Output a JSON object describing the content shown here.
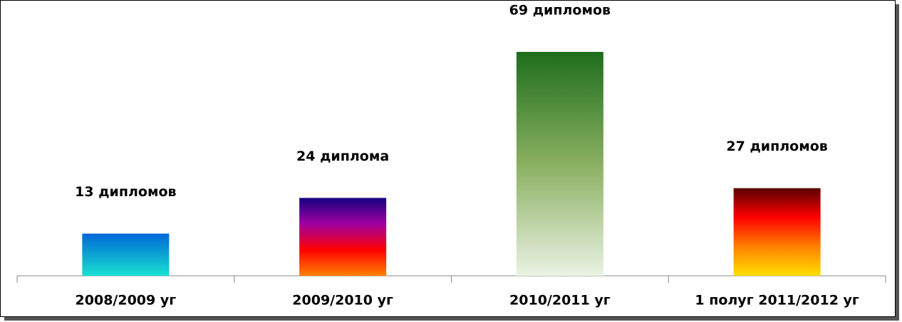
{
  "chart_data": {
    "type": "bar",
    "categories": [
      "2008/2009 уг",
      "2009/2010 уг",
      "2010/2011 уг",
      "1 полуг 2011/2012 уг"
    ],
    "values": [
      13,
      24,
      69,
      27
    ],
    "value_labels": [
      "13 дипломов",
      "24 диплома",
      "69 дипломов",
      "27 дипломов"
    ],
    "colors": [
      [
        "#0068d8",
        "#18e0d0"
      ],
      [
        "#140080",
        "#a000a0",
        "#ff0000",
        "#ff8000"
      ],
      [
        "#1c6e1c",
        "#8ab060",
        "#eaf2e4"
      ],
      [
        "#5a0000",
        "#ff0000",
        "#ff8000",
        "#ffe000"
      ]
    ]
  }
}
